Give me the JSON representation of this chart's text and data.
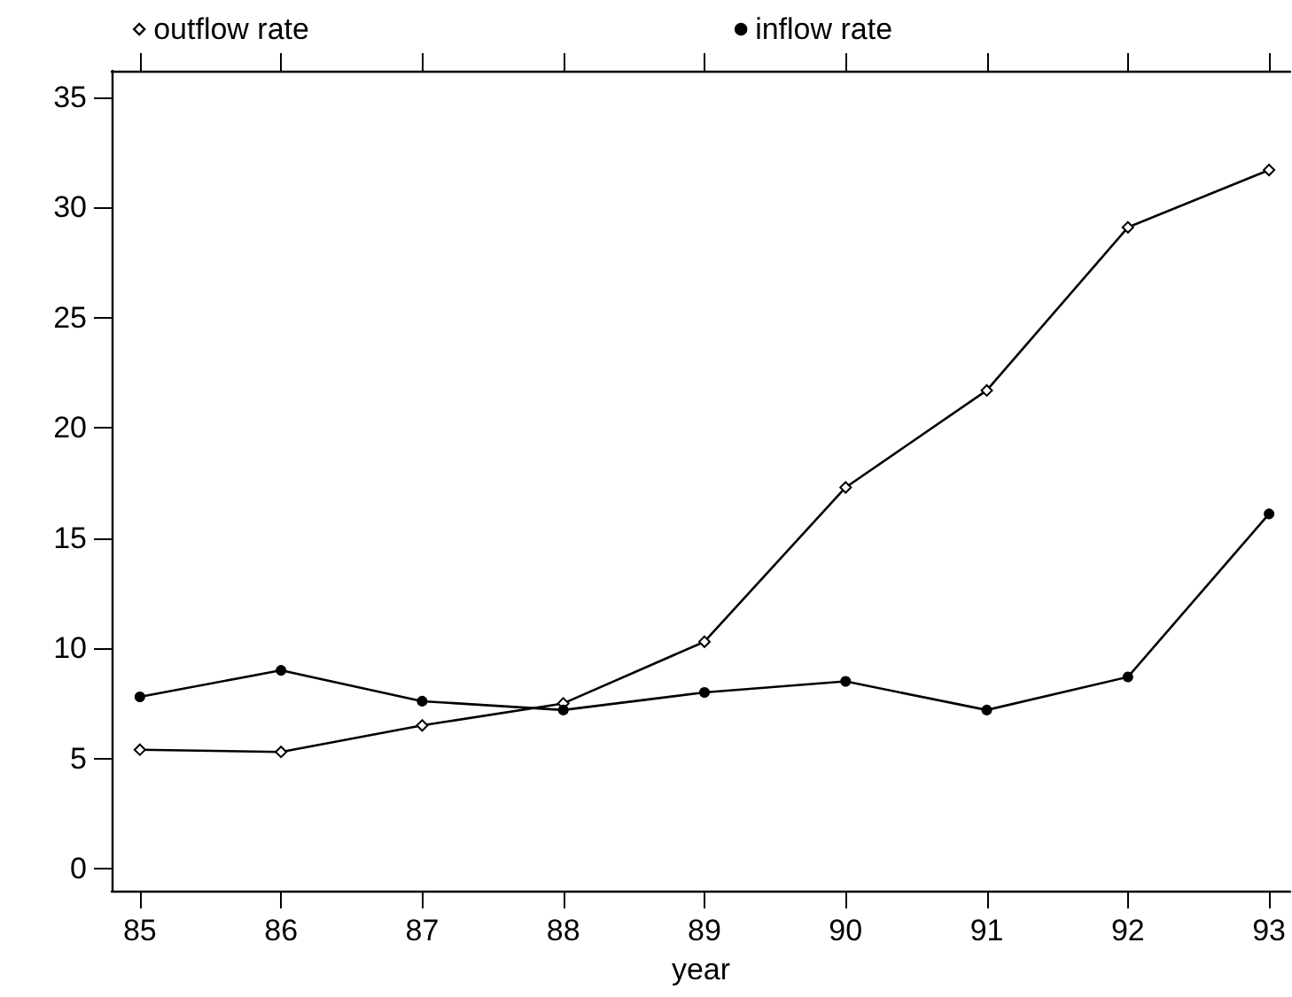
{
  "chart_data": {
    "type": "line",
    "xlabel": "year",
    "x": [
      85,
      86,
      87,
      88,
      89,
      90,
      91,
      92,
      93
    ],
    "xlim": [
      84.8,
      93.15
    ],
    "xticks": [
      85,
      86,
      87,
      88,
      89,
      90,
      91,
      92,
      93
    ],
    "ylim": [
      -1,
      36.2
    ],
    "yticks": [
      0,
      5,
      10,
      15,
      20,
      25,
      30,
      35
    ],
    "grid": false,
    "legend": "top",
    "line_style": "solid",
    "series": [
      {
        "name": "outflow rate",
        "color": "#000000",
        "marker": "diamond",
        "values": [
          5.4,
          5.3,
          6.5,
          7.5,
          10.3,
          17.3,
          21.7,
          29.1,
          31.7
        ]
      },
      {
        "name": "inflow rate",
        "color": "#000000",
        "marker": "circle",
        "values": [
          7.8,
          9.0,
          7.6,
          7.2,
          8.0,
          8.5,
          7.2,
          8.7,
          16.1
        ]
      }
    ]
  }
}
